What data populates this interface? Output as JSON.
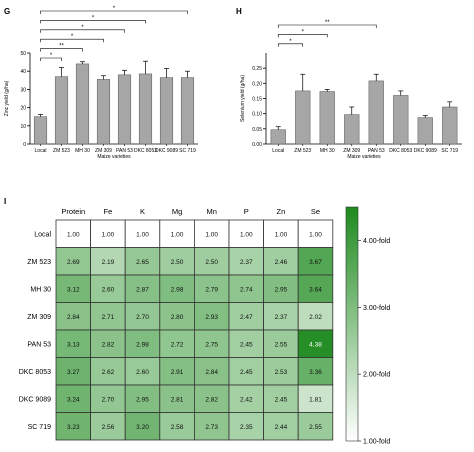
{
  "chart_data": [
    {
      "panel": "G",
      "type": "bar",
      "ylabel": "Zinc yield (g/ha)",
      "xlabel": "Maize varieties",
      "ylim": [
        0,
        50
      ],
      "yticks": [
        "0",
        "10",
        "20",
        "30",
        "40",
        "50"
      ],
      "categories": [
        "Local",
        "ZM 523",
        "MH 30",
        "ZM 309",
        "PAN 53",
        "DKC 8053",
        "DKC 9089",
        "SC 719"
      ],
      "values": [
        15,
        37,
        44,
        35.5,
        38,
        38.5,
        36.5,
        36.5
      ],
      "errors": [
        1.2,
        5,
        1.2,
        2,
        2.5,
        7,
        5,
        3.5
      ],
      "significance": [
        {
          "from": 0,
          "to": 1,
          "label": "*"
        },
        {
          "from": 0,
          "to": 2,
          "label": "**"
        },
        {
          "from": 0,
          "to": 3,
          "label": "*"
        },
        {
          "from": 0,
          "to": 4,
          "label": "*"
        },
        {
          "from": 0,
          "to": 5,
          "label": "*"
        },
        {
          "from": 0,
          "to": 7,
          "label": "*"
        }
      ],
      "bar_color": "#a6a6a6"
    },
    {
      "panel": "H",
      "type": "bar",
      "ylabel": "Selenium yield (g/ha)",
      "xlabel": "Maize varieties",
      "ylim": [
        0,
        0.3
      ],
      "yticks": [
        "0.00",
        "0.05",
        "0.10",
        "0.15",
        "0.20",
        "0.25"
      ],
      "categories": [
        "Local",
        "ZM 523",
        "MH 30",
        "ZM 309",
        "PAN 53",
        "DKC 8053",
        "DKC 9089",
        "SC 719"
      ],
      "values": [
        0.047,
        0.175,
        0.173,
        0.097,
        0.208,
        0.16,
        0.087,
        0.122
      ],
      "errors": [
        0.01,
        0.055,
        0.007,
        0.025,
        0.022,
        0.015,
        0.007,
        0.017
      ],
      "significance": [
        {
          "from": 0,
          "to": 1,
          "label": "*"
        },
        {
          "from": 0,
          "to": 2,
          "label": "*"
        },
        {
          "from": 0,
          "to": 4,
          "label": "**"
        }
      ],
      "bar_color": "#a6a6a6"
    },
    {
      "panel": "I",
      "type": "heatmap",
      "columns": [
        "Protein",
        "Fe",
        "K",
        "Mg",
        "Mn",
        "P",
        "Zn",
        "Se"
      ],
      "rows": [
        "Local",
        "ZM 523",
        "MH 30",
        "ZM 309",
        "PAN 53",
        "DKC 8053",
        "DKC 9089",
        "SC 719"
      ],
      "values": [
        [
          1.0,
          1.0,
          1.0,
          1.0,
          1.0,
          1.0,
          1.0,
          1.0
        ],
        [
          2.69,
          2.19,
          2.65,
          2.5,
          2.5,
          2.37,
          2.46,
          3.67
        ],
        [
          3.12,
          2.6,
          2.87,
          2.98,
          2.79,
          2.74,
          2.95,
          3.64
        ],
        [
          2.84,
          2.71,
          2.7,
          2.8,
          2.93,
          2.47,
          2.37,
          2.02
        ],
        [
          3.13,
          2.82,
          2.98,
          2.72,
          2.75,
          2.45,
          2.55,
          4.38
        ],
        [
          3.27,
          2.62,
          2.6,
          2.91,
          2.84,
          2.45,
          2.53,
          3.36
        ],
        [
          3.24,
          2.7,
          2.95,
          2.81,
          2.82,
          2.42,
          2.45,
          1.81
        ],
        [
          3.23,
          2.56,
          3.2,
          2.58,
          2.73,
          2.35,
          2.44,
          2.55
        ]
      ],
      "value_labels": [
        [
          "1.00",
          "1.00",
          "1.00",
          "1.00",
          "1.00",
          "1.00",
          "1.00",
          "1.00"
        ],
        [
          "2.69",
          "2.19",
          "2.65",
          "2.50",
          "2.50",
          "2.37",
          "2.46",
          "3.67"
        ],
        [
          "3.12",
          "2.60",
          "2.87",
          "2.98",
          "2.79",
          "2.74",
          "2.95",
          "3.64"
        ],
        [
          "2.84",
          "2.71",
          "2.70",
          "2.80",
          "2.93",
          "2.47",
          "2.37",
          "2.02"
        ],
        [
          "3.13",
          "2.82",
          "2.98",
          "2.72",
          "2.75",
          "2.45",
          "2.55",
          "4.38"
        ],
        [
          "3.27",
          "2.62",
          "2.60",
          "2.91",
          "2.84",
          "2.45",
          "2.53",
          "3.36"
        ],
        [
          "3.24",
          "2.70",
          "2.95",
          "2.81",
          "2.82",
          "2.42",
          "2.45",
          "1.81"
        ],
        [
          "3.23",
          "2.56",
          "3.20",
          "2.58",
          "2.73",
          "2.35",
          "2.44",
          "2.55"
        ]
      ],
      "colorbar": {
        "min": 1.0,
        "max": 4.5,
        "ticks": [
          {
            "value": 4.0,
            "label": "4.00-fold"
          },
          {
            "value": 3.0,
            "label": "3.00-fold"
          },
          {
            "value": 2.0,
            "label": "2.00-fold"
          },
          {
            "value": 1.0,
            "label": "1.00-fold"
          }
        ],
        "color_low": "#ffffff",
        "color_high": "#1e8a1e"
      }
    }
  ]
}
